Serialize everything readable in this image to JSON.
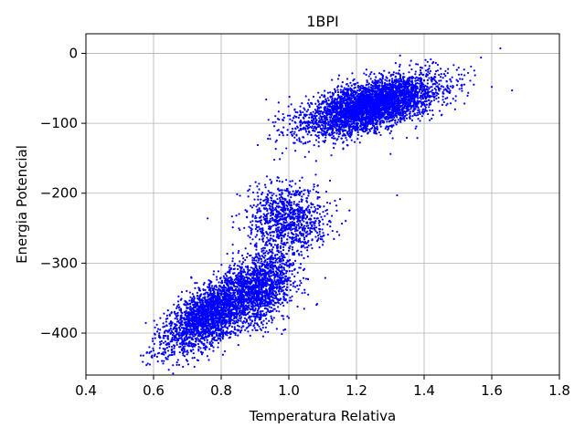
{
  "chart_data": {
    "type": "scatter",
    "title": "1BPI",
    "xlabel": "Temperatura Relativa",
    "ylabel": "Energia Potencial",
    "xlim": [
      0.4,
      1.8
    ],
    "ylim": [
      -460,
      28
    ],
    "xticks": [
      0.4,
      0.6,
      0.8,
      1.0,
      1.2,
      1.4,
      1.6,
      1.8
    ],
    "xtick_labels": [
      "0.4",
      "0.6",
      "0.8",
      "1.0",
      "1.2",
      "1.4",
      "1.6",
      "1.8"
    ],
    "yticks": [
      0,
      -100,
      -200,
      -300,
      -400
    ],
    "ytick_labels": [
      "0",
      "−100",
      "−200",
      "−300",
      "−400"
    ],
    "grid": true,
    "marker_color": "#0000ff",
    "series": [
      {
        "clusters": [
          {
            "cx": 0.78,
            "cy": -370,
            "sx": 0.075,
            "sy": 22,
            "slope": 270,
            "n": 2600,
            "min_x": 0.56,
            "max_x": 1.02
          },
          {
            "cx": 0.93,
            "cy": -330,
            "sx": 0.045,
            "sy": 28,
            "slope": 150,
            "n": 1100,
            "min_x": 0.78,
            "max_x": 1.12
          },
          {
            "cx": 1.0,
            "cy": -235,
            "sx": 0.06,
            "sy": 24,
            "slope": 0,
            "n": 900,
            "min_x": 0.82,
            "max_x": 1.22
          },
          {
            "cx": 1.24,
            "cy": -75,
            "sx": 0.1,
            "sy": 17,
            "slope": 120,
            "n": 4000,
            "min_x": 0.88,
            "max_x": 1.66
          }
        ],
        "stragglers": [
          {
            "x": 1.66,
            "y": -53
          },
          {
            "x": 1.6,
            "y": -48
          },
          {
            "x": 1.53,
            "y": -28
          },
          {
            "x": 1.32,
            "y": -203
          },
          {
            "x": 0.76,
            "y": -236
          },
          {
            "x": 0.6,
            "y": -425
          },
          {
            "x": 0.7,
            "y": -440
          }
        ]
      }
    ]
  }
}
